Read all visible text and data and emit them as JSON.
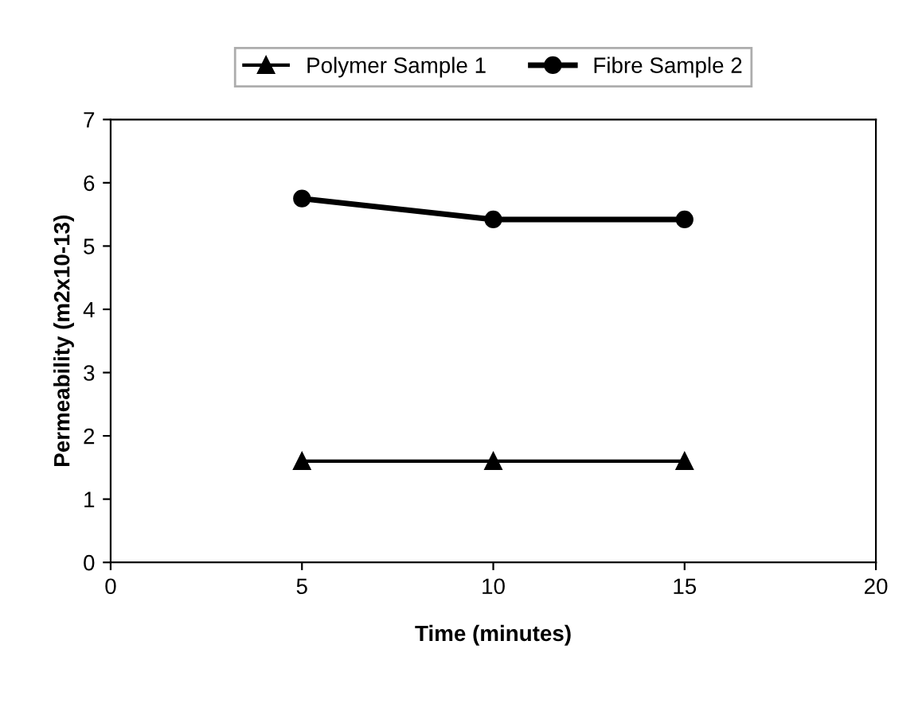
{
  "chart_data": {
    "type": "line",
    "xlabel": "Time (minutes)",
    "ylabel": "Permeability (m2x10-13)",
    "x": [
      5,
      10,
      15
    ],
    "series": [
      {
        "name": "Polymer Sample 1",
        "color": "#000000",
        "marker": "triangle",
        "values": [
          1.6,
          1.6,
          1.6
        ]
      },
      {
        "name": "Fibre Sample 2",
        "color": "#000000",
        "marker": "circle",
        "values": [
          5.75,
          5.42,
          5.42
        ]
      }
    ],
    "xlim": [
      0,
      20
    ],
    "xticks": [
      0,
      5,
      10,
      15,
      20
    ],
    "ylim": [
      0,
      7
    ],
    "yticks": [
      0,
      1,
      2,
      3,
      4,
      5,
      6,
      7
    ],
    "grid": false,
    "legend": "top",
    "line_style": "solid"
  }
}
